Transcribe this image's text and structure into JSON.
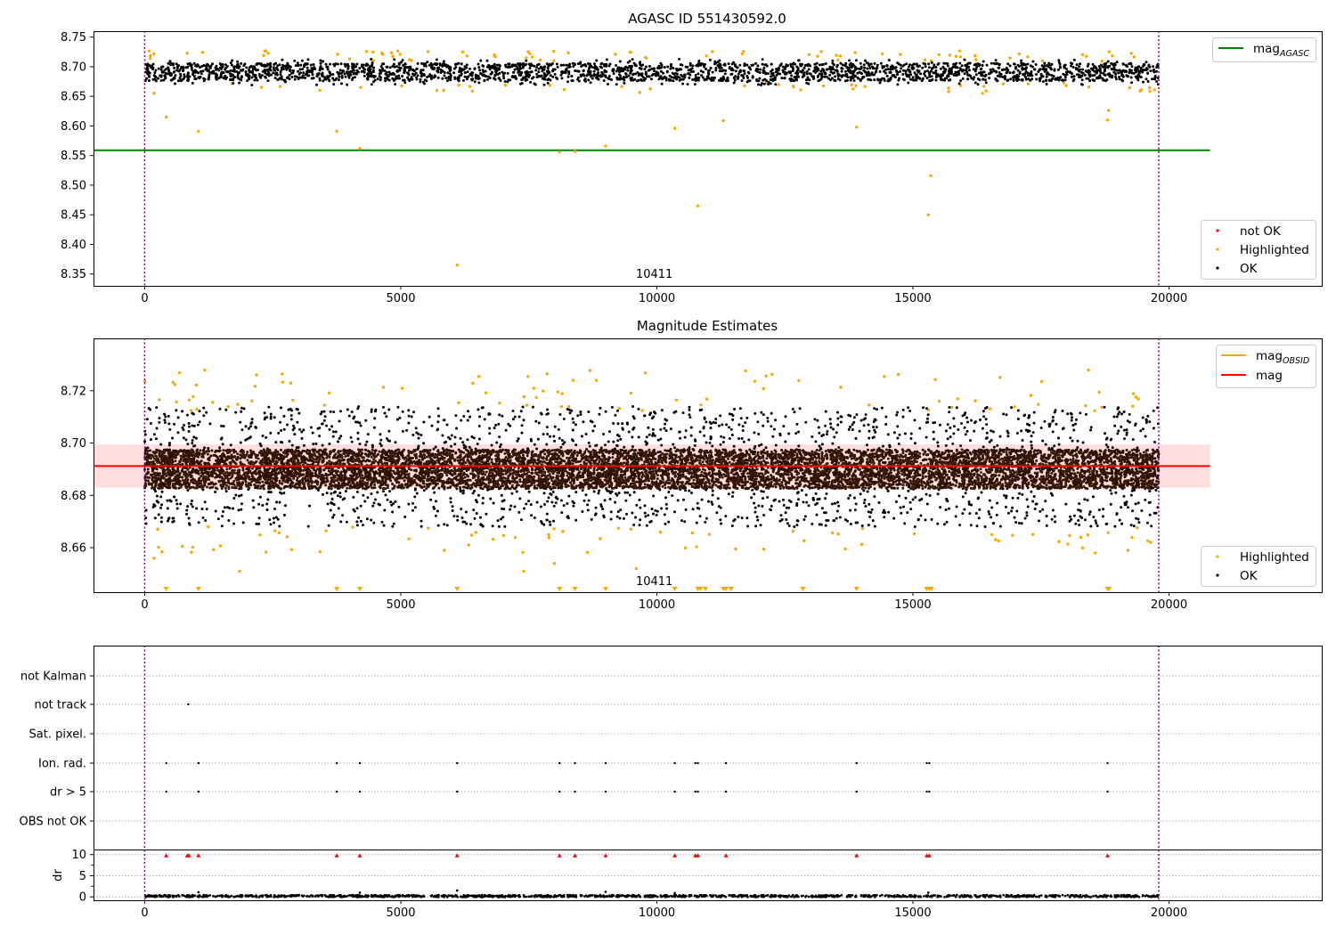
{
  "chart_data": [
    {
      "type": "scatter",
      "title": "AGASC ID 551430592.0",
      "xlim": [
        -1000,
        23000
      ],
      "ylim": [
        8.33,
        8.76
      ],
      "xticks": [
        0,
        5000,
        10000,
        15000,
        20000
      ],
      "xtick_labels": [
        "0",
        "5000",
        "10000",
        "15000",
        "20000"
      ],
      "yticks": [
        8.35,
        8.4,
        8.45,
        8.5,
        8.55,
        8.6,
        8.65,
        8.7,
        8.75
      ],
      "ytick_labels": [
        "8.35",
        "8.40",
        "8.45",
        "8.50",
        "8.55",
        "8.60",
        "8.65",
        "8.70",
        "8.75"
      ],
      "obs_boundaries": [
        0,
        19800
      ],
      "obs_label": "10411",
      "obs_label_x": 9950,
      "data_range_x": [
        0,
        19800
      ],
      "ok_band": {
        "center": 8.691,
        "half_width": 0.015,
        "n_points": 2600
      },
      "ok_extra_spread": 0.022,
      "mag_agasc": {
        "value": 8.559,
        "x": [
          -1000,
          20800
        ]
      },
      "highlighted": {
        "x": [
          180,
          420,
          1050,
          3750,
          4200,
          6100,
          8100,
          8400,
          9000,
          10350,
          10800,
          11300,
          13900,
          15300,
          15350,
          18800,
          18820
        ],
        "y": [
          8.655,
          8.615,
          8.591,
          8.591,
          8.562,
          8.365,
          8.556,
          8.557,
          8.566,
          8.596,
          8.465,
          8.609,
          8.598,
          8.45,
          8.516,
          8.61,
          8.626
        ]
      },
      "highlighted_scatter_count": 120,
      "legend_lines": {
        "label": "mag",
        "subscript": "AGASC",
        "color": "#008000"
      },
      "legend_points": [
        {
          "label": "not OK",
          "color": "#ff0000"
        },
        {
          "label": "Highlighted",
          "color": "#ffa500"
        },
        {
          "label": "OK",
          "color": "#000000"
        }
      ]
    },
    {
      "type": "scatter",
      "title": "Magnitude Estimates",
      "xlim": [
        -1000,
        23000
      ],
      "ylim": [
        8.643,
        8.74
      ],
      "xticks": [
        0,
        5000,
        10000,
        15000,
        20000
      ],
      "xtick_labels": [
        "0",
        "5000",
        "10000",
        "15000",
        "20000"
      ],
      "yticks": [
        8.66,
        8.68,
        8.7,
        8.72
      ],
      "ytick_labels": [
        "8.66",
        "8.68",
        "8.70",
        "8.72"
      ],
      "obs_boundaries": [
        0,
        19800
      ],
      "obs_label": "10411",
      "obs_label_x": 9950,
      "mag": {
        "value": 8.6912,
        "x": [
          -1000,
          20800
        ],
        "color": "#ff0000"
      },
      "mag_band": {
        "low": 8.683,
        "high": 8.6995,
        "color": "#ffdde0"
      },
      "ok_band": {
        "center": 8.69,
        "half_width": 0.0075,
        "n_points": 9000
      },
      "ok_outer": {
        "low": 8.668,
        "high": 8.714,
        "n_points": 2200
      },
      "highlighted_scatter_count": 150,
      "highlighted_outliers": {
        "x": [
          180,
          1850,
          5850,
          7400,
          8000,
          9600,
          19200
        ],
        "y": [
          8.656,
          8.651,
          8.659,
          8.651,
          8.654,
          8.652,
          8.659
        ]
      },
      "clipped_markers_x": [
        420,
        1050,
        3750,
        4200,
        6100,
        8100,
        8400,
        9000,
        10350,
        10800,
        10850,
        10950,
        11300,
        11350,
        11450,
        12850,
        13900,
        15270,
        15320,
        15360,
        18800,
        18830
      ],
      "legend_lines": [
        {
          "label": "mag",
          "subscript": "OBSID",
          "color": "#ffa500"
        },
        {
          "label": "mag",
          "subscript": "",
          "color": "#ff0000"
        }
      ],
      "legend_points": [
        {
          "label": "Highlighted",
          "color": "#ffa500"
        },
        {
          "label": "OK",
          "color": "#000000"
        }
      ]
    },
    {
      "type": "scatter",
      "title": "",
      "xlim": [
        -1000,
        23000
      ],
      "xticks": [
        0,
        5000,
        10000,
        15000,
        20000
      ],
      "xtick_labels": [
        "0",
        "5000",
        "10000",
        "15000",
        "20000"
      ],
      "obs_boundaries": [
        0,
        19800
      ],
      "flag_rows": [
        "not Kalman",
        "not track",
        "Sat. pixel.",
        "Ion. rad.",
        "dr > 5",
        "OBS not OK"
      ],
      "flags": {
        "not track": [
          850
        ],
        "Ion. rad.": [
          420,
          1050,
          3750,
          4200,
          6100,
          8100,
          8400,
          9000,
          10350,
          10750,
          10800,
          11350,
          13900,
          15270,
          15320,
          18800
        ],
        "dr > 5": [
          420,
          1050,
          3750,
          4200,
          6100,
          8100,
          8400,
          9000,
          10350,
          10750,
          10800,
          11350,
          13900,
          15270,
          15320,
          18800
        ]
      },
      "dr_panel": {
        "ylabel": "dr",
        "ylim": [
          -0.8,
          11
        ],
        "yticks": [
          0,
          5,
          10
        ],
        "ytick_labels": [
          "0",
          "5",
          "10"
        ],
        "clipped_x": [
          420,
          830,
          860,
          1050,
          3750,
          4200,
          6100,
          8100,
          8400,
          9000,
          10350,
          10750,
          10800,
          11350,
          13900,
          15270,
          15320,
          18800
        ],
        "clipped_y": 9.8,
        "base_band": {
          "center": 0.2,
          "half_width": 0.25,
          "n_points": 1400
        },
        "spikes": {
          "x": [
            1050,
            4200,
            6100,
            9000,
            10350,
            15300
          ],
          "y": [
            1.1,
            1.0,
            1.5,
            1.2,
            0.9,
            1.0
          ]
        }
      }
    }
  ]
}
